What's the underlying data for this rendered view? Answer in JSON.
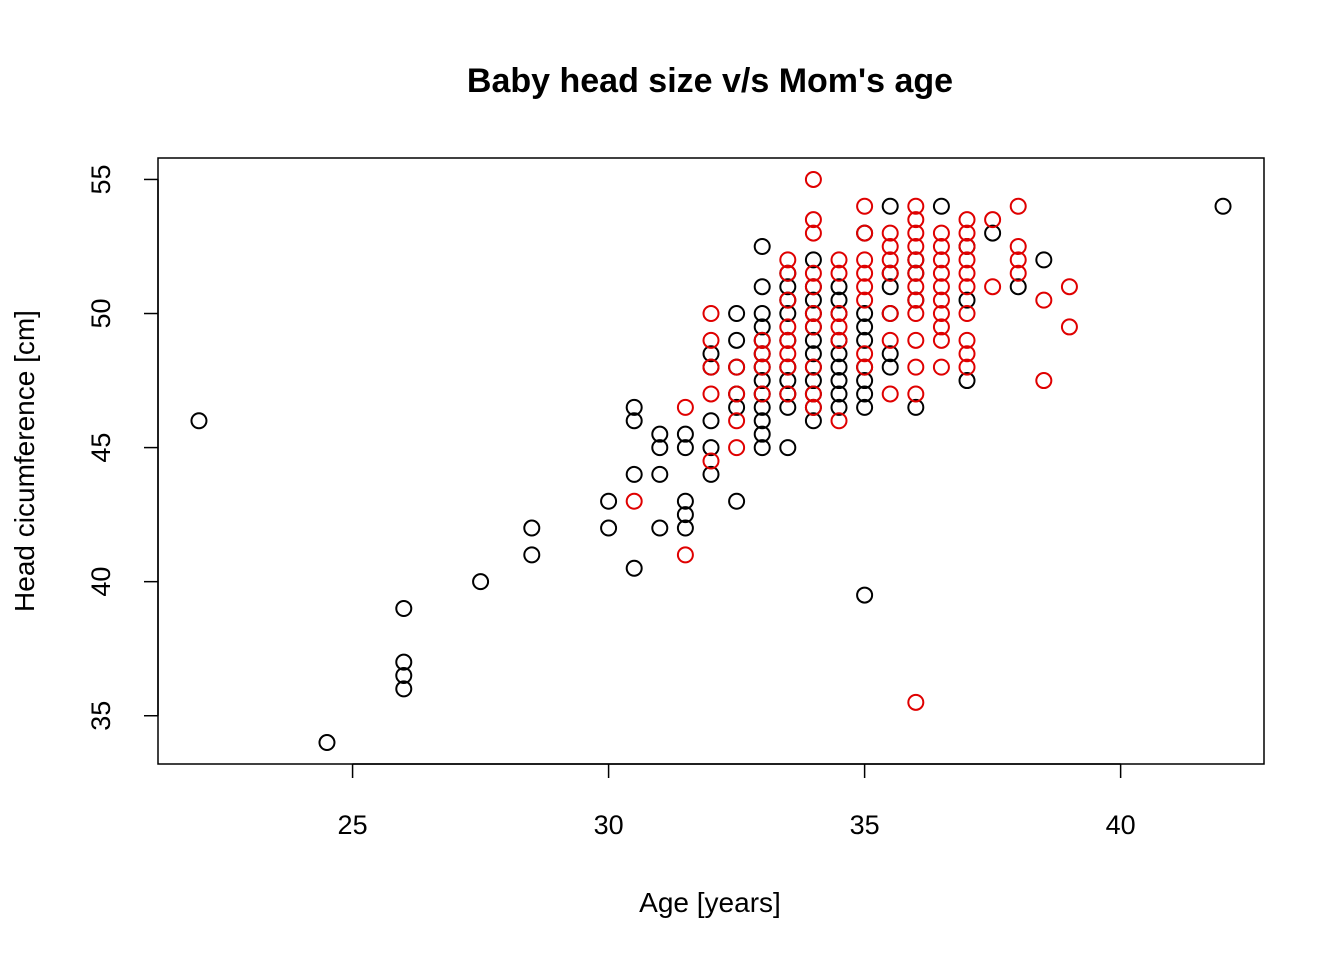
{
  "chart_data": {
    "type": "scatter",
    "title": "Baby head size v/s Mom's age",
    "xlabel": "Age [years]",
    "ylabel": "Head cicumference [cm]",
    "xlim": [
      21.2,
      42.8
    ],
    "ylim": [
      33.2,
      55.8
    ],
    "xticks": [
      25,
      30,
      35,
      40
    ],
    "yticks": [
      35,
      40,
      45,
      50,
      55
    ],
    "grid": false,
    "legend": "none",
    "marker": "open-circle",
    "series": [
      {
        "color": "#000000",
        "points": [
          [
            22,
            46
          ],
          [
            24.5,
            34
          ],
          [
            26,
            39
          ],
          [
            26,
            37
          ],
          [
            26,
            36.5
          ],
          [
            26,
            36
          ],
          [
            27.5,
            40
          ],
          [
            28.5,
            42
          ],
          [
            28.5,
            41
          ],
          [
            30,
            43
          ],
          [
            30,
            42
          ],
          [
            30.5,
            46.5
          ],
          [
            30.5,
            46
          ],
          [
            30.5,
            44
          ],
          [
            30.5,
            40.5
          ],
          [
            31,
            45.5
          ],
          [
            31,
            45
          ],
          [
            31,
            44
          ],
          [
            31,
            42
          ],
          [
            31.5,
            45.5
          ],
          [
            31.5,
            45
          ],
          [
            31.5,
            43
          ],
          [
            31.5,
            42.5
          ],
          [
            31.5,
            42
          ],
          [
            32,
            48.5
          ],
          [
            32,
            48
          ],
          [
            32,
            46
          ],
          [
            32,
            45
          ],
          [
            32,
            44
          ],
          [
            32.5,
            50
          ],
          [
            32.5,
            49
          ],
          [
            32.5,
            48
          ],
          [
            32.5,
            47
          ],
          [
            32.5,
            46.5
          ],
          [
            32.5,
            43
          ],
          [
            33,
            52.5
          ],
          [
            33,
            51
          ],
          [
            33,
            50
          ],
          [
            33,
            49.5
          ],
          [
            33,
            49
          ],
          [
            33,
            48.5
          ],
          [
            33,
            48
          ],
          [
            33,
            47.5
          ],
          [
            33,
            47
          ],
          [
            33,
            46.5
          ],
          [
            33,
            46
          ],
          [
            33,
            45.5
          ],
          [
            33,
            45
          ],
          [
            33.5,
            51.5
          ],
          [
            33.5,
            51
          ],
          [
            33.5,
            50.5
          ],
          [
            33.5,
            50
          ],
          [
            33.5,
            49
          ],
          [
            33.5,
            48
          ],
          [
            33.5,
            47.5
          ],
          [
            33.5,
            47
          ],
          [
            33.5,
            46.5
          ],
          [
            33.5,
            45
          ],
          [
            34,
            52
          ],
          [
            34,
            51
          ],
          [
            34,
            50.5
          ],
          [
            34,
            50
          ],
          [
            34,
            49.5
          ],
          [
            34,
            49
          ],
          [
            34,
            48.5
          ],
          [
            34,
            48
          ],
          [
            34,
            47.5
          ],
          [
            34,
            47
          ],
          [
            34,
            46.5
          ],
          [
            34,
            46
          ],
          [
            34.5,
            51
          ],
          [
            34.5,
            50.5
          ],
          [
            34.5,
            50
          ],
          [
            34.5,
            49
          ],
          [
            34.5,
            48.5
          ],
          [
            34.5,
            48
          ],
          [
            34.5,
            47.5
          ],
          [
            34.5,
            47
          ],
          [
            34.5,
            46.5
          ],
          [
            35,
            53
          ],
          [
            35,
            50
          ],
          [
            35,
            49.5
          ],
          [
            35,
            49
          ],
          [
            35,
            48
          ],
          [
            35,
            47.5
          ],
          [
            35,
            47
          ],
          [
            35,
            46.5
          ],
          [
            35,
            39.5
          ],
          [
            35.5,
            54
          ],
          [
            35.5,
            51.5
          ],
          [
            35.5,
            51
          ],
          [
            35.5,
            50
          ],
          [
            35.5,
            48.5
          ],
          [
            35.5,
            48
          ],
          [
            36,
            52
          ],
          [
            36,
            51.5
          ],
          [
            36,
            50.5
          ],
          [
            36,
            46.5
          ],
          [
            36.5,
            54
          ],
          [
            37,
            52.5
          ],
          [
            37,
            50.5
          ],
          [
            37,
            47.5
          ],
          [
            37.5,
            53
          ],
          [
            38,
            51
          ],
          [
            38.5,
            52
          ],
          [
            42,
            54
          ]
        ]
      },
      {
        "color": "#df0000",
        "points": [
          [
            30.5,
            43
          ],
          [
            31.5,
            46.5
          ],
          [
            31.5,
            41
          ],
          [
            32,
            50
          ],
          [
            32,
            49
          ],
          [
            32,
            48
          ],
          [
            32,
            47
          ],
          [
            32,
            44.5
          ],
          [
            32.5,
            48
          ],
          [
            32.5,
            47
          ],
          [
            32.5,
            46
          ],
          [
            32.5,
            45
          ],
          [
            33,
            49
          ],
          [
            33,
            48.5
          ],
          [
            33,
            48
          ],
          [
            33,
            47
          ],
          [
            33.5,
            52
          ],
          [
            33.5,
            51.5
          ],
          [
            33.5,
            50.5
          ],
          [
            33.5,
            49.5
          ],
          [
            33.5,
            49
          ],
          [
            33.5,
            48.5
          ],
          [
            33.5,
            48
          ],
          [
            33.5,
            47
          ],
          [
            34,
            55
          ],
          [
            34,
            53.5
          ],
          [
            34,
            53
          ],
          [
            34,
            51.5
          ],
          [
            34,
            51
          ],
          [
            34,
            50
          ],
          [
            34,
            49.5
          ],
          [
            34,
            48
          ],
          [
            34,
            47
          ],
          [
            34,
            46.5
          ],
          [
            34.5,
            52
          ],
          [
            34.5,
            51.5
          ],
          [
            34.5,
            50
          ],
          [
            34.5,
            49.5
          ],
          [
            34.5,
            49
          ],
          [
            34.5,
            46
          ],
          [
            35,
            54
          ],
          [
            35,
            53
          ],
          [
            35,
            52
          ],
          [
            35,
            51.5
          ],
          [
            35,
            51
          ],
          [
            35,
            50.5
          ],
          [
            35,
            48.5
          ],
          [
            35,
            48
          ],
          [
            35.5,
            53
          ],
          [
            35.5,
            52.5
          ],
          [
            35.5,
            52
          ],
          [
            35.5,
            51.5
          ],
          [
            35.5,
            50
          ],
          [
            35.5,
            49
          ],
          [
            35.5,
            47
          ],
          [
            36,
            54
          ],
          [
            36,
            53.5
          ],
          [
            36,
            53
          ],
          [
            36,
            52.5
          ],
          [
            36,
            52
          ],
          [
            36,
            51.5
          ],
          [
            36,
            51
          ],
          [
            36,
            50.5
          ],
          [
            36,
            50
          ],
          [
            36,
            49
          ],
          [
            36,
            48
          ],
          [
            36,
            47
          ],
          [
            36,
            35.5
          ],
          [
            36.5,
            53
          ],
          [
            36.5,
            52.5
          ],
          [
            36.5,
            52
          ],
          [
            36.5,
            51.5
          ],
          [
            36.5,
            51
          ],
          [
            36.5,
            50.5
          ],
          [
            36.5,
            50
          ],
          [
            36.5,
            49.5
          ],
          [
            36.5,
            49
          ],
          [
            36.5,
            48
          ],
          [
            37,
            53.5
          ],
          [
            37,
            53
          ],
          [
            37,
            52.5
          ],
          [
            37,
            52
          ],
          [
            37,
            51.5
          ],
          [
            37,
            51
          ],
          [
            37,
            50
          ],
          [
            37,
            49
          ],
          [
            37,
            48.5
          ],
          [
            37,
            48
          ],
          [
            37.5,
            53.5
          ],
          [
            37.5,
            51
          ],
          [
            38,
            54
          ],
          [
            38,
            52.5
          ],
          [
            38,
            52
          ],
          [
            38,
            51.5
          ],
          [
            38.5,
            50.5
          ],
          [
            38.5,
            47.5
          ],
          [
            39,
            51
          ],
          [
            39,
            49.5
          ]
        ]
      }
    ]
  }
}
